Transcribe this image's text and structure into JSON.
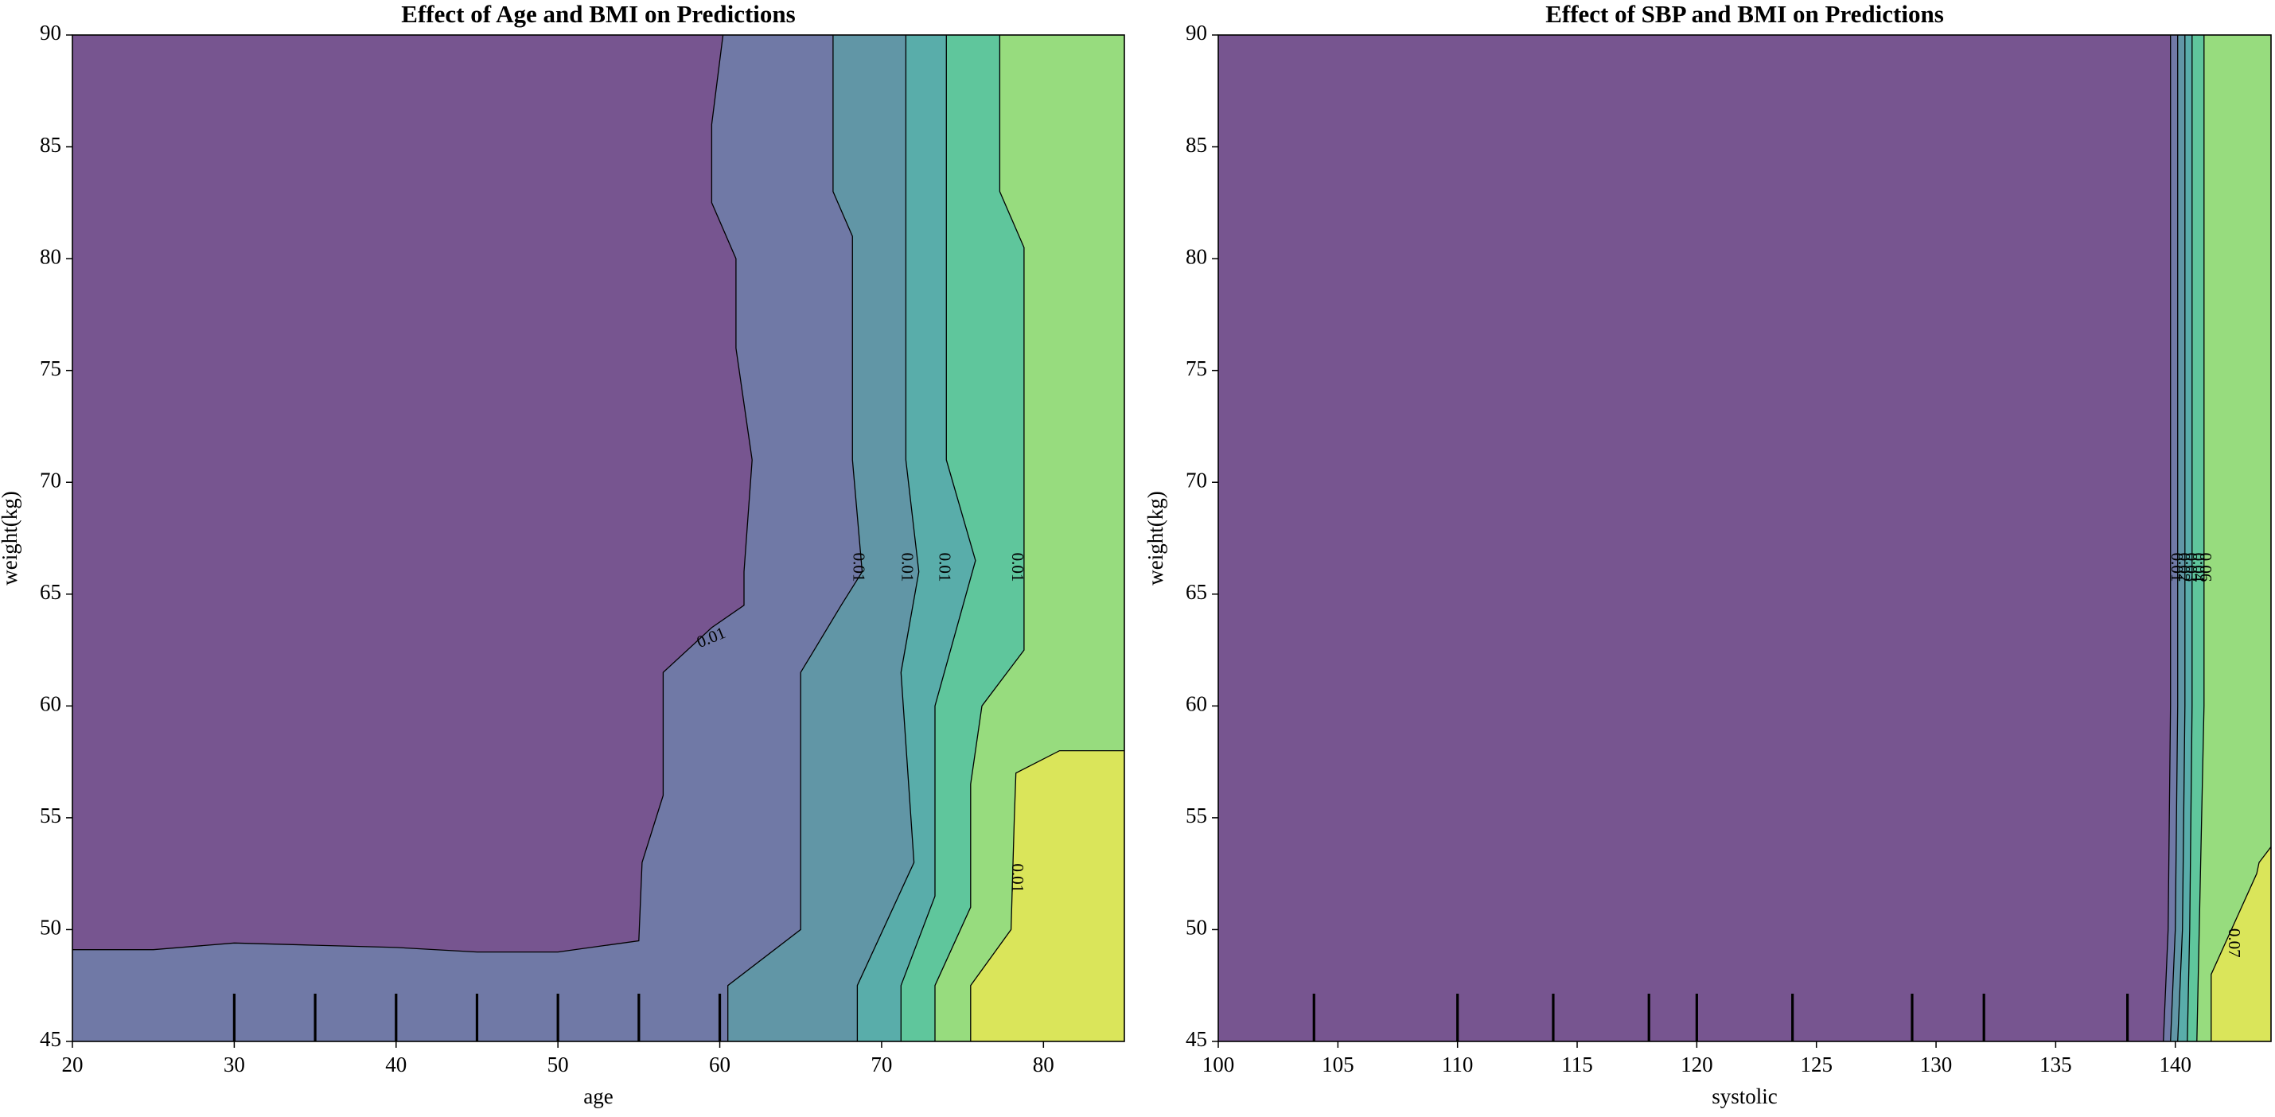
{
  "chart_data": [
    {
      "type": "contour",
      "title": "Effect of Age and BMI on Predictions",
      "xlabel": "age",
      "ylabel": "weight(kg)",
      "xlim": [
        20,
        85
      ],
      "ylim": [
        45,
        90
      ],
      "xticks": [
        "20",
        "30",
        "40",
        "50",
        "60",
        "70",
        "80"
      ],
      "yticks": [
        "45",
        "50",
        "55",
        "60",
        "65",
        "70",
        "75",
        "80",
        "85",
        "90"
      ],
      "grid": false,
      "colors": [
        "#775590",
        "#7079a6",
        "#6196a6",
        "#59adaa",
        "#5fc69c",
        "#97dc7e",
        "#dae55a"
      ],
      "region_boundaries": [
        [
          [
            20,
            49.1
          ],
          [
            25,
            49.1
          ],
          [
            30,
            49.4
          ],
          [
            35,
            49.3
          ],
          [
            40,
            49.2
          ],
          [
            45,
            49
          ],
          [
            50,
            49
          ],
          [
            55,
            49.5
          ],
          [
            55.2,
            53
          ],
          [
            56.5,
            56
          ],
          [
            56.5,
            61.5
          ],
          [
            59.5,
            63.5
          ],
          [
            61.5,
            64.5
          ],
          [
            61.5,
            66
          ],
          [
            62,
            71
          ],
          [
            61,
            76
          ],
          [
            61,
            80
          ],
          [
            59.5,
            82.5
          ],
          [
            59.5,
            86
          ],
          [
            60.2,
            90
          ]
        ],
        [
          [
            60.5,
            45
          ],
          [
            60.5,
            47.5
          ],
          [
            65,
            50
          ],
          [
            65,
            61.5
          ],
          [
            67.5,
            64.5
          ],
          [
            68.8,
            66
          ],
          [
            68.2,
            71
          ],
          [
            68.2,
            81
          ],
          [
            67,
            83
          ],
          [
            67,
            90
          ]
        ],
        [
          [
            68.5,
            45
          ],
          [
            68.5,
            47.5
          ],
          [
            72,
            53
          ],
          [
            71.2,
            61.5
          ],
          [
            72.3,
            66
          ],
          [
            71.5,
            71
          ],
          [
            71.5,
            90
          ]
        ],
        [
          [
            71.2,
            45
          ],
          [
            71.2,
            47.5
          ],
          [
            73.3,
            51.5
          ],
          [
            73.3,
            60
          ],
          [
            75.8,
            66.5
          ],
          [
            74,
            71
          ],
          [
            74,
            90
          ]
        ],
        [
          [
            73.3,
            45
          ],
          [
            73.3,
            47.5
          ],
          [
            75.5,
            51
          ],
          [
            75.5,
            56.5
          ],
          [
            76.2,
            60
          ],
          [
            78.8,
            62.5
          ],
          [
            78.8,
            80.5
          ],
          [
            77.3,
            83
          ],
          [
            77.3,
            90
          ]
        ],
        [
          [
            75.5,
            45
          ],
          [
            75.5,
            47.5
          ],
          [
            78,
            50
          ],
          [
            78.2,
            55
          ],
          [
            78.3,
            57
          ],
          [
            81,
            58
          ],
          [
            85,
            58
          ]
        ]
      ],
      "contour_labels": [
        {
          "text": "0.01",
          "x": 59.5,
          "y": 63
        },
        {
          "text": "0.01",
          "x": 68.5,
          "y": 66.2
        },
        {
          "text": "0.01",
          "x": 71.5,
          "y": 66.2
        },
        {
          "text": "0.01",
          "x": 73.8,
          "y": 66.2
        },
        {
          "text": "0.01",
          "x": 78.3,
          "y": 66.2
        },
        {
          "text": "0.01",
          "x": 78.3,
          "y": 52.3
        }
      ],
      "rug_x": [
        30,
        35,
        40,
        45,
        50,
        55,
        60
      ]
    },
    {
      "type": "contour",
      "title": "Effect of SBP and BMI on Predictions",
      "xlabel": "systolic",
      "ylabel": "weight(kg)",
      "xlim": [
        100,
        144
      ],
      "ylim": [
        45,
        90
      ],
      "xticks": [
        "100",
        "105",
        "110",
        "115",
        "120",
        "125",
        "130",
        "135",
        "140"
      ],
      "yticks": [
        "45",
        "50",
        "55",
        "60",
        "65",
        "70",
        "75",
        "80",
        "85",
        "90"
      ],
      "grid": false,
      "colors": [
        "#775590",
        "#7079a6",
        "#6196a6",
        "#59adaa",
        "#5fc69c",
        "#97dc7e",
        "#dae55a"
      ],
      "region_boundaries": [
        [
          [
            139.5,
            45
          ],
          [
            139.7,
            50
          ],
          [
            139.8,
            60
          ],
          [
            139.8,
            90
          ]
        ],
        [
          [
            139.8,
            45
          ],
          [
            140.0,
            50
          ],
          [
            140.1,
            60
          ],
          [
            140.1,
            90
          ]
        ],
        [
          [
            140.1,
            45
          ],
          [
            140.3,
            50
          ],
          [
            140.4,
            60
          ],
          [
            140.4,
            90
          ]
        ],
        [
          [
            140.5,
            45
          ],
          [
            140.6,
            50
          ],
          [
            140.7,
            60
          ],
          [
            140.7,
            90
          ]
        ],
        [
          [
            140.9,
            45
          ],
          [
            141.0,
            50
          ],
          [
            141.2,
            60
          ],
          [
            141.2,
            90
          ]
        ],
        [
          [
            141.5,
            45
          ],
          [
            141.5,
            48
          ],
          [
            143.4,
            52.5
          ],
          [
            143.5,
            53
          ],
          [
            144,
            53.7
          ]
        ]
      ],
      "contour_labels": [
        {
          "text": "0.01",
          "x": 140.0,
          "y": 66.2
        },
        {
          "text": "0.02",
          "x": 140.3,
          "y": 66.2
        },
        {
          "text": "0.03",
          "x": 140.6,
          "y": 66.2
        },
        {
          "text": "0.04",
          "x": 140.9,
          "y": 66.2
        },
        {
          "text": "0.06",
          "x": 141.2,
          "y": 66.2
        },
        {
          "text": "0.07",
          "x": 142.4,
          "y": 49.4
        }
      ],
      "rug_x": [
        104,
        110,
        114,
        118,
        120,
        124,
        129,
        132,
        138
      ]
    }
  ]
}
